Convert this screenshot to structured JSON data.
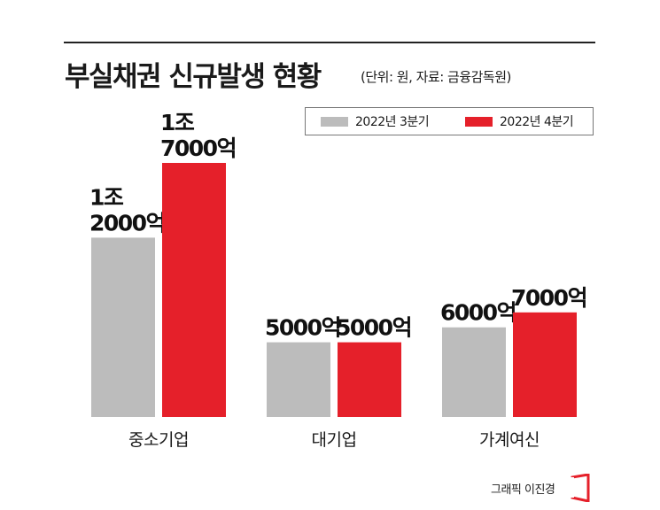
{
  "header": {
    "title": "부실채권 신규발생 현황",
    "subtitle": "(단위: 원, 자료: 금융감독원)"
  },
  "colors": {
    "q3": "#bcbcbc",
    "q4": "#e5202a"
  },
  "chart_data": {
    "type": "bar",
    "title": "부실채권 신규발생 현황",
    "unit_note": "(단위: 원, 자료: 금융감독원)",
    "categories": [
      "중소기업",
      "대기업",
      "가계여신"
    ],
    "series": [
      {
        "name": "2022년 3분기",
        "values": [
          12000,
          5000,
          6000
        ],
        "labels": [
          [
            "1조",
            "2000억"
          ],
          [
            "5000억"
          ],
          [
            "6000억"
          ]
        ]
      },
      {
        "name": "2022년 4분기",
        "values": [
          17000,
          5000,
          7000
        ],
        "labels": [
          [
            "1조",
            "7000억"
          ],
          [
            "5000억"
          ],
          [
            "7000억"
          ]
        ]
      }
    ],
    "value_unit": "억 원",
    "ylim": [
      0,
      17000
    ],
    "grid": false,
    "legend_position": "top-right"
  },
  "credit": {
    "text": "그래픽 이진경",
    "logo_icon": "bracket-logo-icon"
  }
}
